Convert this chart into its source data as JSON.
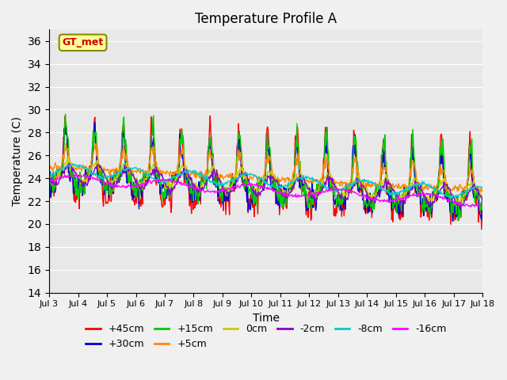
{
  "title": "Temperature Profile A",
  "xlabel": "Time",
  "ylabel": "Temperature (C)",
  "ylim": [
    14,
    37
  ],
  "yticks": [
    14,
    16,
    18,
    20,
    22,
    24,
    26,
    28,
    30,
    32,
    34,
    36
  ],
  "xtick_positions": [
    0,
    1,
    2,
    3,
    4,
    5,
    6,
    7,
    8,
    9,
    10,
    11,
    12,
    13,
    14,
    15
  ],
  "xtick_labels": [
    "Jul 3",
    "Jul 4",
    "Jul 5",
    "Jul 6",
    "Jul 7",
    "Jul 8",
    "Jul 9",
    "Jul 10",
    "Jul 11",
    "Jul 12",
    "Jul 13",
    "Jul 14",
    "Jul 15",
    "Jul 16",
    "Jul 17",
    "Jul 18"
  ],
  "annotation_text": "GT_met",
  "annotation_color": "#cc0000",
  "annotation_bg": "#ffff99",
  "lines": {
    "+45cm": "#ff0000",
    "+30cm": "#0000cc",
    "+15cm": "#00cc00",
    "+5cm": "#ff8800",
    "0cm": "#cccc00",
    "-2cm": "#8800cc",
    "-8cm": "#00cccc",
    "-16cm": "#ff00ff"
  },
  "plot_bg": "#e8e8e8",
  "grid_color": "#ffffff",
  "title_fontsize": 12,
  "axis_fontsize": 10,
  "legend_fontsize": 9
}
